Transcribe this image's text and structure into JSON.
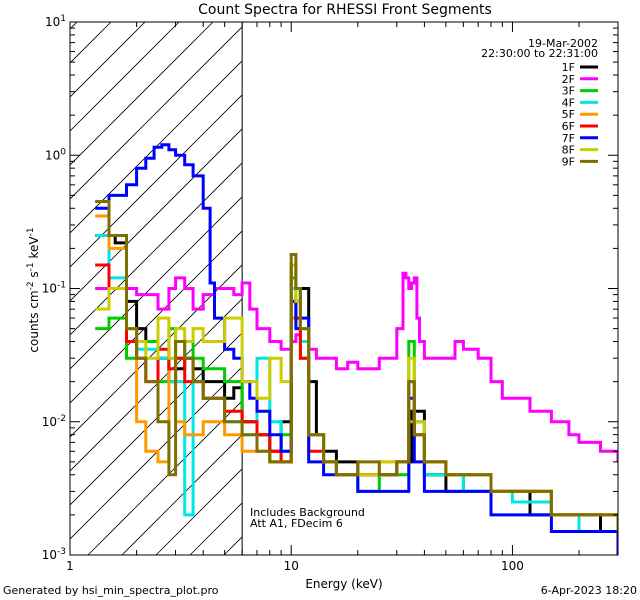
{
  "chart_data": {
    "type": "line",
    "title": "Count Spectra for RHESSI Front Segments",
    "xlabel": "Energy (keV)",
    "ylabel": "counts cm-2 s-1 keV-1",
    "ylabel_parts": {
      "main": "counts cm",
      "exp1": "-2",
      "s": " s",
      "exp2": "-1",
      "kev": " keV",
      "exp3": "-1"
    },
    "xscale": "log",
    "yscale": "log",
    "xlim": [
      1,
      300
    ],
    "ylim": [
      0.001,
      10
    ],
    "xticks": [
      {
        "value": 1,
        "label": "1"
      },
      {
        "value": 10,
        "label": "10"
      },
      {
        "value": 100,
        "label": "100"
      }
    ],
    "yticks": [
      {
        "value": 0.001,
        "base": "10",
        "exp": "-3"
      },
      {
        "value": 0.01,
        "base": "10",
        "exp": "-2"
      },
      {
        "value": 0.1,
        "base": "10",
        "exp": "-1"
      },
      {
        "value": 1,
        "base": "10",
        "exp": "0"
      },
      {
        "value": 10,
        "base": "10",
        "exp": "1"
      }
    ],
    "shaded_region": {
      "x_from": 1,
      "x_to": 6,
      "style": "diagonal-hatch"
    },
    "header": {
      "date": "19-Mar-2002",
      "time_range": "22:30:00 to 22:31:00"
    },
    "annotations": [
      "Includes Background",
      "Att A1, FDecim 6"
    ],
    "footer": {
      "left": "Generated by hsi_min_spectra_plot.pro",
      "right": "6-Apr-2023 18:20"
    },
    "series": [
      {
        "name": "1F",
        "color": "#000000",
        "x": [
          1.3,
          1.5,
          1.6,
          1.8,
          2.0,
          2.2,
          2.5,
          2.8,
          3.0,
          3.3,
          3.6,
          4.0,
          4.5,
          5.0,
          5.5,
          6.0,
          7,
          8,
          9,
          10,
          10.5,
          11,
          12,
          13,
          14,
          16,
          18,
          20,
          25,
          30,
          35,
          40,
          50,
          60,
          70,
          80,
          100,
          120,
          150,
          200,
          250,
          300
        ],
        "y": [
          0.25,
          0.25,
          0.22,
          0.08,
          0.05,
          0.04,
          0.03,
          0.02,
          0.025,
          0.03,
          0.025,
          0.02,
          0.02,
          0.015,
          0.018,
          0.01,
          0.008,
          0.006,
          0.01,
          0.15,
          0.08,
          0.1,
          0.02,
          0.008,
          0.006,
          0.005,
          0.005,
          0.004,
          0.004,
          0.005,
          0.012,
          0.004,
          0.003,
          0.003,
          0.003,
          0.003,
          0.003,
          0.002,
          0.002,
          0.002,
          0.0015,
          0.0015
        ]
      },
      {
        "name": "2F",
        "color": "#ff00ff",
        "x": [
          1.3,
          1.5,
          1.8,
          2.0,
          2.2,
          2.5,
          2.8,
          3.0,
          3.3,
          3.6,
          4.0,
          4.5,
          5.0,
          5.5,
          6.0,
          6.5,
          7,
          8,
          9,
          10,
          10.5,
          11,
          12,
          13,
          14,
          16,
          18,
          20,
          25,
          30,
          32,
          33,
          34,
          35,
          36,
          37,
          38,
          40,
          45,
          50,
          55,
          60,
          70,
          80,
          90,
          100,
          120,
          150,
          180,
          200,
          250,
          300
        ],
        "y": [
          0.1,
          0.1,
          0.1,
          0.09,
          0.09,
          0.07,
          0.1,
          0.12,
          0.1,
          0.07,
          0.09,
          0.1,
          0.1,
          0.09,
          0.11,
          0.07,
          0.05,
          0.04,
          0.035,
          0.04,
          0.045,
          0.04,
          0.035,
          0.03,
          0.03,
          0.025,
          0.028,
          0.025,
          0.03,
          0.05,
          0.13,
          0.12,
          0.1,
          0.11,
          0.12,
          0.06,
          0.04,
          0.03,
          0.03,
          0.03,
          0.04,
          0.035,
          0.03,
          0.02,
          0.015,
          0.015,
          0.012,
          0.01,
          0.008,
          0.007,
          0.006,
          0.005
        ]
      },
      {
        "name": "3F",
        "color": "#00cc00",
        "x": [
          1.3,
          1.5,
          1.8,
          2.0,
          2.2,
          2.5,
          2.8,
          3.0,
          3.3,
          3.6,
          4.0,
          5,
          6,
          7,
          8,
          9,
          10,
          10.5,
          11,
          12,
          14,
          16,
          20,
          25,
          30,
          34,
          36,
          40,
          50,
          60,
          80,
          100,
          150,
          200,
          300
        ],
        "y": [
          0.05,
          0.06,
          0.03,
          0.04,
          0.04,
          0.02,
          0.05,
          0.03,
          0.04,
          0.03,
          0.025,
          0.02,
          0.01,
          0.008,
          0.005,
          0.008,
          0.12,
          0.1,
          0.05,
          0.008,
          0.005,
          0.004,
          0.003,
          0.004,
          0.004,
          0.04,
          0.01,
          0.004,
          0.004,
          0.003,
          0.003,
          0.003,
          0.002,
          0.002,
          0.0015
        ]
      },
      {
        "name": "4F",
        "color": "#00e5e5",
        "x": [
          1.3,
          1.5,
          1.8,
          2.0,
          2.2,
          2.5,
          2.8,
          3.0,
          3.3,
          3.6,
          4.0,
          5,
          6,
          7,
          8,
          9,
          10,
          10.5,
          11,
          12,
          14,
          16,
          20,
          25,
          30,
          34,
          36,
          40,
          50,
          60,
          80,
          100,
          150,
          200,
          300
        ],
        "y": [
          0.25,
          0.12,
          0.05,
          0.035,
          0.035,
          0.03,
          0.02,
          0.02,
          0.002,
          0.02,
          0.015,
          0.01,
          0.008,
          0.03,
          0.01,
          0.006,
          0.1,
          0.06,
          0.04,
          0.008,
          0.005,
          0.004,
          0.004,
          0.004,
          0.005,
          0.02,
          0.01,
          0.004,
          0.004,
          0.003,
          0.003,
          0.0025,
          0.002,
          0.0015,
          0.0012
        ]
      },
      {
        "name": "5F",
        "color": "#ff9900",
        "x": [
          1.3,
          1.5,
          1.8,
          2.0,
          2.2,
          2.5,
          2.8,
          3.0,
          3.3,
          3.6,
          4.0,
          5,
          6,
          7,
          8,
          9,
          10,
          10.5,
          11,
          12,
          14,
          16,
          20,
          25,
          30,
          34,
          36,
          40,
          50,
          60,
          80,
          100,
          150,
          200,
          300
        ],
        "y": [
          0.35,
          0.2,
          0.05,
          0.01,
          0.006,
          0.005,
          0.03,
          0.01,
          0.008,
          0.008,
          0.01,
          0.008,
          0.006,
          0.006,
          0.005,
          0.005,
          0.06,
          0.05,
          0.03,
          0.008,
          0.005,
          0.004,
          0.004,
          0.005,
          0.005,
          0.01,
          0.008,
          0.005,
          0.004,
          0.004,
          0.003,
          0.003,
          0.002,
          0.002,
          0.0015
        ]
      },
      {
        "name": "6F",
        "color": "#ff0000",
        "x": [
          1.3,
          1.5,
          1.8,
          2.0,
          2.2,
          2.5,
          2.8,
          3.0,
          3.3,
          3.6,
          4.0,
          5,
          6,
          7,
          8,
          9,
          10,
          10.5,
          11,
          12,
          14,
          16,
          20,
          25,
          30,
          34,
          36,
          40,
          50,
          60,
          80,
          100,
          150,
          200,
          300
        ],
        "y": [
          0.15,
          0.1,
          0.04,
          0.03,
          0.02,
          0.035,
          0.025,
          0.03,
          0.02,
          0.02,
          0.015,
          0.012,
          0.01,
          0.008,
          0.006,
          0.005,
          0.08,
          0.06,
          0.03,
          0.006,
          0.005,
          0.004,
          0.004,
          0.004,
          0.005,
          0.02,
          0.008,
          0.005,
          0.004,
          0.004,
          0.003,
          0.003,
          0.002,
          0.002,
          0.0015
        ]
      },
      {
        "name": "7F",
        "color": "#0000ff",
        "x": [
          1.3,
          1.5,
          1.8,
          2.0,
          2.2,
          2.4,
          2.6,
          2.8,
          3.0,
          3.3,
          3.6,
          4.0,
          4.3,
          4.5,
          5.0,
          5.5,
          6.0,
          6.5,
          7,
          8,
          9,
          10,
          10.5,
          11,
          12,
          14,
          16,
          20,
          25,
          30,
          34,
          36,
          40,
          50,
          60,
          80,
          100,
          150,
          200,
          300
        ],
        "y": [
          0.4,
          0.5,
          0.6,
          0.8,
          0.95,
          1.15,
          1.2,
          1.1,
          1.0,
          0.85,
          0.7,
          0.4,
          0.11,
          0.06,
          0.035,
          0.03,
          0.02,
          0.015,
          0.012,
          0.008,
          0.006,
          0.08,
          0.05,
          0.06,
          0.005,
          0.004,
          0.004,
          0.003,
          0.003,
          0.003,
          0.015,
          0.005,
          0.003,
          0.003,
          0.003,
          0.002,
          0.002,
          0.0015,
          0.0015,
          0.001
        ]
      },
      {
        "name": "8F",
        "color": "#cccc00",
        "x": [
          1.3,
          1.5,
          1.8,
          2.0,
          2.2,
          2.5,
          2.8,
          3.0,
          3.3,
          3.6,
          4.0,
          5,
          6,
          7,
          8,
          9,
          10,
          10.5,
          11,
          12,
          14,
          16,
          20,
          25,
          30,
          34,
          36,
          40,
          50,
          60,
          80,
          100,
          150,
          200,
          300
        ],
        "y": [
          0.07,
          0.1,
          0.05,
          0.04,
          0.03,
          0.06,
          0.03,
          0.05,
          0.04,
          0.05,
          0.04,
          0.06,
          0.02,
          0.015,
          0.03,
          0.02,
          0.15,
          0.08,
          0.05,
          0.008,
          0.005,
          0.004,
          0.004,
          0.005,
          0.005,
          0.03,
          0.01,
          0.005,
          0.004,
          0.004,
          0.003,
          0.003,
          0.002,
          0.002,
          0.0015
        ]
      },
      {
        "name": "9F",
        "color": "#7f6f00",
        "x": [
          1.3,
          1.5,
          1.8,
          2.0,
          2.2,
          2.5,
          2.8,
          3.0,
          3.3,
          3.6,
          4.0,
          5,
          6,
          7,
          8,
          9,
          10,
          10.5,
          11,
          12,
          14,
          16,
          20,
          25,
          30,
          34,
          36,
          40,
          50,
          60,
          80,
          100,
          150,
          200,
          300
        ],
        "y": [
          0.45,
          0.25,
          0.05,
          0.03,
          0.02,
          0.01,
          0.004,
          0.04,
          0.03,
          0.02,
          0.015,
          0.01,
          0.008,
          0.006,
          0.005,
          0.005,
          0.18,
          0.1,
          0.05,
          0.008,
          0.005,
          0.004,
          0.005,
          0.004,
          0.005,
          0.02,
          0.008,
          0.005,
          0.004,
          0.004,
          0.003,
          0.003,
          0.002,
          0.002,
          0.0015
        ]
      }
    ]
  }
}
